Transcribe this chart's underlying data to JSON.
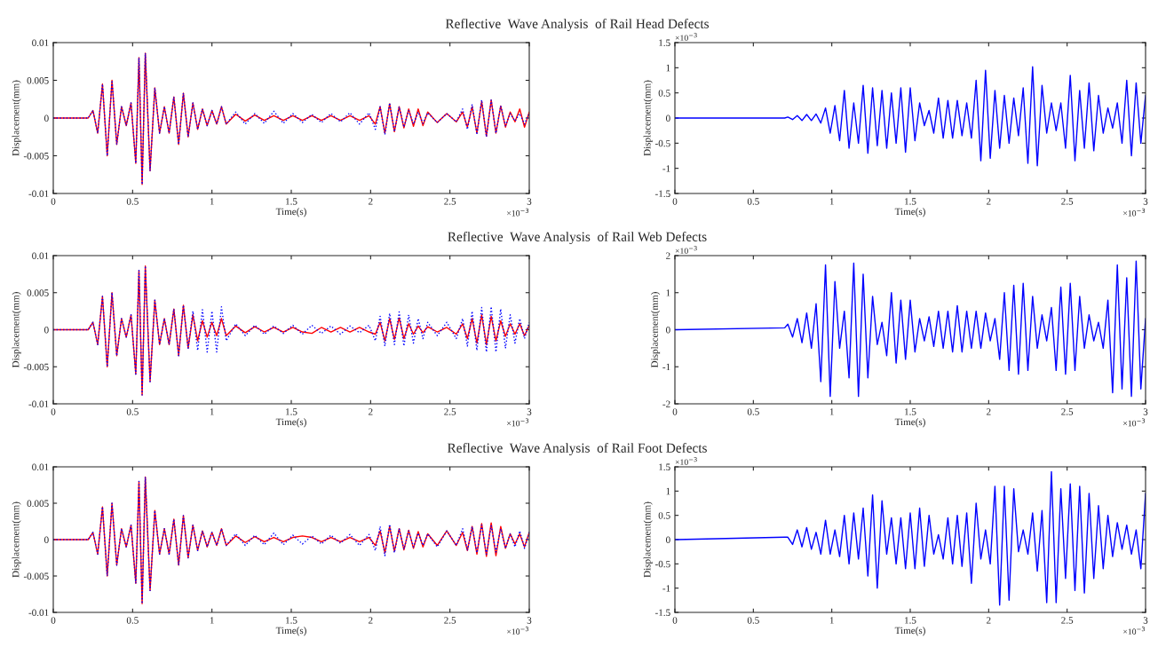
{
  "chart_data": [
    {
      "type": "line",
      "title": "Reflective  Wave Analysis  of Rail Head Defects",
      "xlabel": "Time(s)",
      "ylabel": "Displacement(mm)",
      "x": [
        0,
        0.22,
        0.25,
        0.28,
        0.31,
        0.34,
        0.37,
        0.4,
        0.43,
        0.46,
        0.49,
        0.52,
        0.54,
        0.56,
        0.58,
        0.61,
        0.64,
        0.67,
        0.7,
        0.73,
        0.76,
        0.79,
        0.82,
        0.85,
        0.88,
        0.91,
        0.94,
        0.97,
        1.0,
        1.03,
        1.06,
        1.09,
        1.15,
        1.21,
        1.27,
        1.33,
        1.39,
        1.45,
        1.51,
        1.57,
        1.63,
        1.69,
        1.75,
        1.81,
        1.87,
        1.93,
        1.99,
        2.03,
        2.06,
        2.09,
        2.12,
        2.15,
        2.18,
        2.21,
        2.24,
        2.27,
        2.3,
        2.33,
        2.36,
        2.42,
        2.48,
        2.54,
        2.58,
        2.61,
        2.64,
        2.67,
        2.7,
        2.73,
        2.76,
        2.79,
        2.82,
        2.85,
        2.88,
        2.91,
        2.94,
        2.97,
        3.0
      ],
      "series": [
        {
          "color": "#ff0000",
          "line_style": "solid",
          "values": [
            0,
            0,
            0.001,
            -0.002,
            0.0045,
            -0.005,
            0.005,
            -0.0035,
            0.0015,
            -0.001,
            0.002,
            -0.006,
            0.008,
            -0.0088,
            0.0086,
            -0.007,
            0.004,
            -0.002,
            0.0015,
            -0.002,
            0.0028,
            -0.0035,
            0.0033,
            -0.0025,
            0.002,
            -0.0015,
            0.0012,
            -0.001,
            0.001,
            -0.0008,
            0.0015,
            -0.0008,
            0.0005,
            -0.0004,
            0.0004,
            -0.0003,
            0.0003,
            -0.0003,
            0.0003,
            -0.0003,
            0.0003,
            -0.0003,
            0.0003,
            -0.0003,
            0.0003,
            -0.0003,
            0.0003,
            -0.0008,
            0.0015,
            -0.002,
            0.0019,
            -0.0018,
            0.0015,
            -0.0013,
            0.0012,
            -0.0011,
            0.0012,
            -0.001,
            0.0008,
            -0.0006,
            0.0006,
            -0.0005,
            0.0008,
            -0.0012,
            0.0015,
            -0.002,
            0.0022,
            -0.0024,
            0.0024,
            -0.002,
            0.0016,
            -0.0012,
            0.0008,
            -0.0005,
            0.0012,
            -0.0012,
            0.0008
          ]
        },
        {
          "color": "#0000ff",
          "line_style": "dotted",
          "values": [
            0,
            0,
            0.001,
            -0.002,
            0.0045,
            -0.005,
            0.005,
            -0.0035,
            0.0015,
            -0.001,
            0.002,
            -0.006,
            0.008,
            -0.0088,
            0.0086,
            -0.007,
            0.004,
            -0.002,
            0.0015,
            -0.002,
            0.0028,
            -0.0035,
            0.0033,
            -0.0025,
            0.002,
            -0.0015,
            0.0012,
            -0.001,
            0.001,
            -0.0008,
            0.0015,
            -0.0008,
            0.0008,
            -0.0008,
            0.0006,
            -0.0007,
            0.0009,
            -0.0007,
            0.0006,
            -0.0006,
            0.0005,
            -0.0006,
            0.0006,
            -0.0005,
            0.0007,
            -0.0008,
            0.0007,
            -0.0015,
            0.0015,
            -0.0022,
            0.002,
            -0.0018,
            0.0015,
            -0.0012,
            0.001,
            -0.0008,
            0.0008,
            -0.0007,
            0.0007,
            -0.0006,
            0.0006,
            -0.0005,
            0.0012,
            -0.0015,
            0.0018,
            -0.0022,
            0.0024,
            -0.0025,
            0.0024,
            -0.002,
            0.0016,
            -0.001,
            0.0006,
            -0.0004,
            0.0006,
            -0.0008,
            0.0006
          ]
        }
      ],
      "xlim": [
        0,
        3
      ],
      "xticks": [
        0,
        0.5,
        1,
        1.5,
        2,
        2.5,
        3
      ],
      "ylim": [
        -0.01,
        0.01
      ],
      "yticks": [
        -0.01,
        -0.005,
        0,
        0.005,
        0.01
      ],
      "annotations": [
        "×10$^{−3}$"
      ]
    },
    {
      "type": "line",
      "xlabel": "Time(s)",
      "ylabel": "Displacement(mm)",
      "x": [
        0,
        0.7,
        0.72,
        0.75,
        0.78,
        0.81,
        0.84,
        0.87,
        0.9,
        0.93,
        0.96,
        0.99,
        1.02,
        1.05,
        1.08,
        1.11,
        1.14,
        1.17,
        1.2,
        1.23,
        1.26,
        1.29,
        1.32,
        1.35,
        1.38,
        1.41,
        1.44,
        1.47,
        1.5,
        1.53,
        1.56,
        1.59,
        1.62,
        1.65,
        1.68,
        1.71,
        1.74,
        1.77,
        1.8,
        1.83,
        1.86,
        1.89,
        1.92,
        1.95,
        1.98,
        2.01,
        2.04,
        2.07,
        2.1,
        2.13,
        2.16,
        2.19,
        2.22,
        2.25,
        2.28,
        2.31,
        2.34,
        2.37,
        2.4,
        2.43,
        2.46,
        2.49,
        2.52,
        2.55,
        2.58,
        2.61,
        2.64,
        2.67,
        2.7,
        2.73,
        2.76,
        2.79,
        2.82,
        2.85,
        2.88,
        2.91,
        2.94,
        2.97,
        3.0
      ],
      "series": [
        {
          "color": "#0000ff",
          "line_style": "solid",
          "values": [
            0,
            0,
            0.02,
            -0.03,
            0.05,
            -0.05,
            0.07,
            -0.05,
            0.08,
            -0.1,
            0.2,
            -0.3,
            0.25,
            -0.45,
            0.55,
            -0.6,
            0.3,
            -0.5,
            0.65,
            -0.7,
            0.6,
            -0.55,
            0.55,
            -0.6,
            0.5,
            -0.5,
            0.6,
            -0.68,
            0.6,
            -0.45,
            0.3,
            -0.15,
            0.15,
            -0.3,
            0.4,
            -0.4,
            0.35,
            -0.4,
            0.35,
            -0.35,
            0.3,
            -0.4,
            0.75,
            -0.85,
            0.95,
            -0.8,
            0.55,
            -0.6,
            0.45,
            -0.5,
            0.4,
            -0.35,
            0.6,
            -0.9,
            1.02,
            -0.95,
            0.65,
            -0.3,
            0.3,
            -0.25,
            0.3,
            -0.6,
            0.85,
            -0.85,
            0.55,
            -0.6,
            0.7,
            -0.65,
            0.45,
            -0.3,
            0.2,
            -0.2,
            0.3,
            -0.5,
            0.75,
            -0.75,
            0.7,
            -0.5,
            0.45
          ]
        }
      ],
      "xlim": [
        0,
        3
      ],
      "xticks": [
        0,
        0.5,
        1,
        1.5,
        2,
        2.5,
        3
      ],
      "ylim": [
        -1.5,
        1.5
      ],
      "yticks": [
        -1.5,
        -1,
        -0.5,
        0,
        0.5,
        1,
        1.5
      ],
      "annotations": [
        "×10$^{−3}$",
        "×10$^{−3}$"
      ]
    },
    {
      "type": "line",
      "title": "Reflective  Wave Analysis  of Rail Web Defects",
      "xlabel": "Time(s)",
      "ylabel": "Displacement(mm)",
      "x": [
        0,
        0.22,
        0.25,
        0.28,
        0.31,
        0.34,
        0.37,
        0.4,
        0.43,
        0.46,
        0.49,
        0.52,
        0.54,
        0.56,
        0.58,
        0.61,
        0.64,
        0.67,
        0.7,
        0.73,
        0.76,
        0.79,
        0.82,
        0.85,
        0.88,
        0.91,
        0.94,
        0.97,
        1.0,
        1.03,
        1.06,
        1.09,
        1.15,
        1.21,
        1.27,
        1.33,
        1.39,
        1.45,
        1.51,
        1.57,
        1.63,
        1.69,
        1.75,
        1.81,
        1.87,
        1.93,
        1.99,
        2.03,
        2.06,
        2.09,
        2.12,
        2.15,
        2.18,
        2.21,
        2.24,
        2.27,
        2.3,
        2.33,
        2.36,
        2.42,
        2.48,
        2.54,
        2.58,
        2.61,
        2.64,
        2.67,
        2.7,
        2.73,
        2.76,
        2.79,
        2.82,
        2.85,
        2.88,
        2.91,
        2.94,
        2.97,
        3.0
      ],
      "series": [
        {
          "color": "#ff0000",
          "line_style": "solid",
          "values": [
            0,
            0,
            0.001,
            -0.002,
            0.0045,
            -0.005,
            0.005,
            -0.0035,
            0.0015,
            -0.001,
            0.002,
            -0.006,
            0.008,
            -0.0088,
            0.0086,
            -0.007,
            0.004,
            -0.002,
            0.0015,
            -0.002,
            0.0028,
            -0.0035,
            0.0033,
            -0.0025,
            0.002,
            -0.0015,
            0.0012,
            -0.001,
            0.001,
            -0.0008,
            0.0015,
            -0.0008,
            0.0005,
            -0.0004,
            0.0004,
            -0.0003,
            0.0003,
            -0.0003,
            0.0003,
            -0.0003,
            -0.0005,
            0.0003,
            -0.0003,
            0.0003,
            -0.0003,
            0.0003,
            -0.0003,
            -0.0006,
            0.001,
            -0.0015,
            0.0015,
            -0.0013,
            0.0016,
            -0.0012,
            0.0008,
            -0.0006,
            0.0005,
            -0.0004,
            0.0004,
            -0.0003,
            0.0003,
            -0.0006,
            0.0008,
            -0.0012,
            0.0015,
            -0.0018,
            0.002,
            -0.002,
            0.0018,
            -0.0015,
            0.0012,
            -0.0009,
            0.0008,
            -0.0006,
            0.0008,
            -0.0008,
            0.0006
          ]
        },
        {
          "color": "#0000ff",
          "line_style": "dotted",
          "values": [
            0,
            0,
            0.001,
            -0.002,
            0.0045,
            -0.005,
            0.005,
            -0.0035,
            0.0015,
            -0.001,
            0.002,
            -0.006,
            0.008,
            -0.0088,
            0.0086,
            -0.007,
            0.004,
            -0.002,
            0.0015,
            -0.002,
            0.0028,
            -0.0035,
            0.0033,
            -0.0025,
            0.0025,
            -0.0028,
            0.0027,
            -0.003,
            0.0025,
            -0.003,
            0.0031,
            -0.0015,
            0.0008,
            -0.0008,
            0.0006,
            -0.0006,
            0.0005,
            -0.0005,
            0.0006,
            -0.0006,
            0.0006,
            -0.0005,
            0.0005,
            -0.0006,
            0.0005,
            -0.0004,
            0.0006,
            -0.0015,
            0.0018,
            -0.0022,
            0.0022,
            -0.002,
            0.0024,
            -0.0022,
            0.002,
            -0.0018,
            0.0015,
            -0.0012,
            0.001,
            -0.0008,
            0.001,
            -0.0012,
            0.0015,
            -0.0022,
            0.0025,
            -0.0028,
            0.003,
            -0.003,
            0.0031,
            -0.003,
            0.0028,
            -0.0025,
            0.002,
            -0.0018,
            0.0015,
            -0.0012,
            0.001
          ]
        }
      ],
      "xlim": [
        0,
        3
      ],
      "xticks": [
        0,
        0.5,
        1,
        1.5,
        2,
        2.5,
        3
      ],
      "ylim": [
        -0.01,
        0.01
      ],
      "yticks": [
        -0.01,
        -0.005,
        0,
        0.005,
        0.01
      ],
      "annotations": [
        "×10$^{−3}$"
      ]
    },
    {
      "type": "line",
      "xlabel": "Time(s)",
      "ylabel": "Displacement(mm)",
      "x": [
        0,
        0.7,
        0.72,
        0.75,
        0.78,
        0.81,
        0.84,
        0.87,
        0.9,
        0.93,
        0.96,
        0.99,
        1.02,
        1.05,
        1.08,
        1.11,
        1.14,
        1.17,
        1.2,
        1.23,
        1.26,
        1.29,
        1.32,
        1.35,
        1.38,
        1.41,
        1.44,
        1.47,
        1.5,
        1.53,
        1.56,
        1.59,
        1.62,
        1.65,
        1.68,
        1.71,
        1.74,
        1.77,
        1.8,
        1.83,
        1.86,
        1.89,
        1.92,
        1.95,
        1.98,
        2.01,
        2.04,
        2.07,
        2.1,
        2.13,
        2.16,
        2.19,
        2.22,
        2.25,
        2.28,
        2.31,
        2.34,
        2.37,
        2.4,
        2.43,
        2.46,
        2.49,
        2.52,
        2.55,
        2.58,
        2.61,
        2.64,
        2.67,
        2.7,
        2.73,
        2.76,
        2.79,
        2.82,
        2.85,
        2.88,
        2.91,
        2.94,
        2.97,
        3.0
      ],
      "series": [
        {
          "color": "#0000ff",
          "line_style": "solid",
          "values": [
            0,
            0.05,
            0.15,
            -0.2,
            0.3,
            -0.35,
            0.45,
            -0.5,
            0.7,
            -1.4,
            1.75,
            -1.8,
            1.3,
            -0.5,
            0.5,
            -1.3,
            1.8,
            -1.8,
            1.5,
            -1.3,
            0.9,
            -0.4,
            0.2,
            -0.7,
            1.0,
            -0.9,
            0.8,
            -0.8,
            0.8,
            -0.6,
            0.3,
            -0.3,
            0.35,
            -0.45,
            0.5,
            -0.5,
            0.5,
            -0.6,
            0.65,
            -0.6,
            0.5,
            -0.5,
            0.5,
            -0.5,
            0.45,
            -0.3,
            0.3,
            -0.8,
            1.0,
            -1.1,
            1.2,
            -1.2,
            1.25,
            -1.1,
            0.9,
            -0.5,
            0.4,
            -0.3,
            0.6,
            -1.1,
            1.15,
            -1.2,
            1.25,
            -1.1,
            0.9,
            -0.5,
            0.4,
            -0.3,
            0.2,
            -0.5,
            0.8,
            -1.7,
            1.75,
            -1.6,
            1.4,
            -1.8,
            1.85,
            -1.6,
            0.3
          ]
        }
      ],
      "xlim": [
        0,
        3
      ],
      "xticks": [
        0,
        0.5,
        1,
        1.5,
        2,
        2.5,
        3
      ],
      "ylim": [
        -2,
        2
      ],
      "yticks": [
        -2,
        -1,
        0,
        1,
        2
      ],
      "annotations": [
        "×10$^{−3}$",
        "×10$^{−3}$"
      ]
    },
    {
      "type": "line",
      "title": "Reflective  Wave Analysis  of Rail Foot Defects",
      "xlabel": "Time(s)",
      "ylabel": "Displacement(mm)",
      "x": [
        0,
        0.22,
        0.25,
        0.28,
        0.31,
        0.34,
        0.37,
        0.4,
        0.43,
        0.46,
        0.49,
        0.52,
        0.54,
        0.56,
        0.58,
        0.61,
        0.64,
        0.67,
        0.7,
        0.73,
        0.76,
        0.79,
        0.82,
        0.85,
        0.88,
        0.91,
        0.94,
        0.97,
        1.0,
        1.03,
        1.06,
        1.09,
        1.15,
        1.21,
        1.27,
        1.33,
        1.39,
        1.45,
        1.51,
        1.57,
        1.63,
        1.69,
        1.75,
        1.81,
        1.87,
        1.93,
        1.99,
        2.03,
        2.06,
        2.09,
        2.12,
        2.15,
        2.18,
        2.21,
        2.24,
        2.27,
        2.3,
        2.33,
        2.36,
        2.42,
        2.48,
        2.54,
        2.58,
        2.61,
        2.64,
        2.67,
        2.7,
        2.73,
        2.76,
        2.79,
        2.82,
        2.85,
        2.88,
        2.91,
        2.94,
        2.97,
        3.0
      ],
      "series": [
        {
          "color": "#ff0000",
          "line_style": "solid",
          "values": [
            0,
            0,
            0.001,
            -0.002,
            0.0045,
            -0.005,
            0.005,
            -0.0035,
            0.0015,
            -0.001,
            0.002,
            -0.006,
            0.008,
            -0.0088,
            0.0086,
            -0.007,
            0.004,
            -0.002,
            0.0015,
            -0.002,
            0.0028,
            -0.0035,
            0.0033,
            -0.0025,
            0.002,
            -0.0015,
            0.0012,
            -0.001,
            0.001,
            -0.0008,
            0.0015,
            -0.0008,
            0.0005,
            -0.0004,
            0.0004,
            -0.0003,
            0.0003,
            -0.0003,
            0.0003,
            0.0005,
            0.0003,
            -0.0003,
            0.0003,
            -0.0003,
            0.0003,
            -0.0003,
            0.0003,
            -0.0008,
            0.0012,
            -0.0018,
            0.0018,
            -0.0016,
            0.0015,
            -0.0014,
            0.0013,
            -0.0012,
            0.0011,
            -0.001,
            0.0008,
            -0.0008,
            0.0012,
            -0.0008,
            0.001,
            -0.0015,
            0.0018,
            -0.002,
            0.0022,
            -0.0023,
            0.0023,
            -0.0022,
            0.0018,
            -0.0012,
            0.0008,
            -0.0006,
            0.0008,
            -0.001,
            0.001
          ]
        },
        {
          "color": "#0000ff",
          "line_style": "dotted",
          "values": [
            0,
            0,
            0.001,
            -0.002,
            0.0045,
            -0.005,
            0.005,
            -0.0035,
            0.0015,
            -0.001,
            0.002,
            -0.006,
            0.008,
            -0.0088,
            0.0086,
            -0.007,
            0.004,
            -0.002,
            0.0015,
            -0.002,
            0.0028,
            -0.0035,
            0.0033,
            -0.0025,
            0.002,
            -0.0015,
            0.0012,
            -0.001,
            0.001,
            -0.0008,
            0.0015,
            -0.0008,
            0.0008,
            -0.0008,
            0.0006,
            -0.0007,
            0.0009,
            -0.0007,
            0.0006,
            -0.0006,
            0.0005,
            -0.0006,
            0.0006,
            -0.0005,
            0.0007,
            -0.0008,
            0.0007,
            -0.0015,
            0.0018,
            -0.0022,
            0.0021,
            -0.0018,
            0.0015,
            -0.0013,
            0.0012,
            -0.001,
            0.0009,
            -0.0008,
            0.0008,
            -0.001,
            0.0012,
            -0.0008,
            0.0015,
            -0.0015,
            0.0018,
            -0.0018,
            0.002,
            -0.002,
            0.0019,
            -0.0017,
            0.0015,
            -0.0012,
            0.0008,
            -0.001,
            0.0012,
            -0.0012,
            0.001
          ]
        }
      ],
      "xlim": [
        0,
        3
      ],
      "xticks": [
        0,
        0.5,
        1,
        1.5,
        2,
        2.5,
        3
      ],
      "ylim": [
        -0.01,
        0.01
      ],
      "yticks": [
        -0.01,
        -0.005,
        0,
        0.005,
        0.01
      ],
      "annotations": [
        "×10$^{−3}$"
      ]
    },
    {
      "type": "line",
      "xlabel": "Time(s)",
      "ylabel": "Displacement(mm)",
      "x": [
        0,
        0.7,
        0.72,
        0.75,
        0.78,
        0.81,
        0.84,
        0.87,
        0.9,
        0.93,
        0.96,
        0.99,
        1.02,
        1.05,
        1.08,
        1.11,
        1.14,
        1.17,
        1.2,
        1.23,
        1.26,
        1.29,
        1.32,
        1.35,
        1.38,
        1.41,
        1.44,
        1.47,
        1.5,
        1.53,
        1.56,
        1.59,
        1.62,
        1.65,
        1.68,
        1.71,
        1.74,
        1.77,
        1.8,
        1.83,
        1.86,
        1.89,
        1.92,
        1.95,
        1.98,
        2.01,
        2.04,
        2.07,
        2.1,
        2.13,
        2.16,
        2.19,
        2.22,
        2.25,
        2.28,
        2.31,
        2.34,
        2.37,
        2.4,
        2.43,
        2.46,
        2.49,
        2.52,
        2.55,
        2.58,
        2.61,
        2.64,
        2.67,
        2.7,
        2.73,
        2.76,
        2.79,
        2.82,
        2.85,
        2.88,
        2.91,
        2.94,
        2.97,
        3.0
      ],
      "series": [
        {
          "color": "#0000ff",
          "line_style": "solid",
          "values": [
            0,
            0.05,
            0.05,
            -0.1,
            0.2,
            -0.15,
            0.25,
            -0.2,
            0.15,
            -0.3,
            0.4,
            -0.3,
            0.2,
            -0.35,
            0.5,
            -0.5,
            0.55,
            -0.4,
            0.65,
            -0.75,
            0.92,
            -1.0,
            0.8,
            -0.3,
            0.45,
            -0.5,
            0.45,
            -0.6,
            0.55,
            -0.6,
            0.65,
            -0.55,
            0.5,
            -0.3,
            0.1,
            -0.4,
            0.45,
            -0.5,
            0.5,
            -0.55,
            0.55,
            -0.9,
            0.75,
            -0.4,
            0.2,
            -0.5,
            1.1,
            -1.35,
            1.1,
            -1.25,
            1.05,
            -0.25,
            0.2,
            -0.3,
            0.55,
            -0.65,
            0.6,
            -1.3,
            1.4,
            -1.3,
            1.05,
            -0.8,
            1.15,
            -1.05,
            1.1,
            -1.1,
            0.95,
            -0.8,
            0.7,
            -0.6,
            0.5,
            -0.35,
            0.35,
            -0.2,
            0.3,
            -0.3,
            0.2,
            -0.6,
            0.95
          ]
        }
      ],
      "xlim": [
        0,
        3
      ],
      "xticks": [
        0,
        0.5,
        1,
        1.5,
        2,
        2.5,
        3
      ],
      "ylim": [
        -1.5,
        1.5
      ],
      "yticks": [
        -1.5,
        -1,
        -0.5,
        0,
        0.5,
        1,
        1.5
      ],
      "annotations": [
        "×10$^{−3}$",
        "×10$^{−3}$"
      ]
    }
  ]
}
